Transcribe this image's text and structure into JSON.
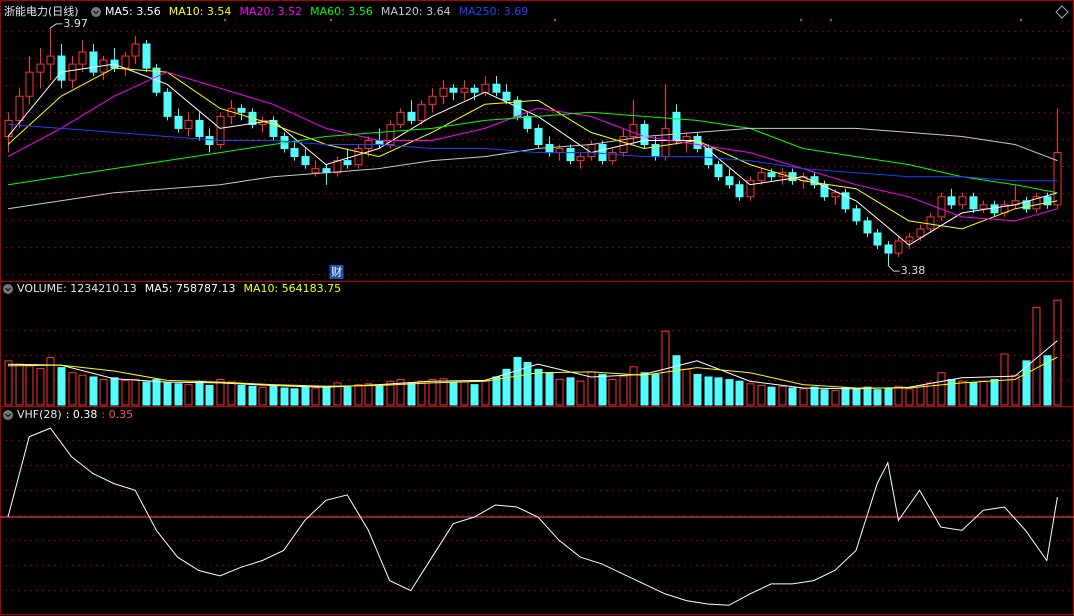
{
  "chart_data": [
    {
      "type": "candlestick",
      "title": "浙能电力(日线)",
      "xlim": [
        -0.75,
        100
      ],
      "ylim": [
        3.343,
        4.027
      ],
      "up_color": "#ff3232",
      "down_color": "#54fcfc",
      "ohlc": [
        [
          3.7,
          3.76,
          3.66,
          3.74
        ],
        [
          3.74,
          3.82,
          3.72,
          3.8
        ],
        [
          3.8,
          3.9,
          3.78,
          3.86
        ],
        [
          3.86,
          3.92,
          3.82,
          3.88
        ],
        [
          3.88,
          3.97,
          3.84,
          3.9
        ],
        [
          3.9,
          3.93,
          3.82,
          3.84
        ],
        [
          3.84,
          3.9,
          3.82,
          3.88
        ],
        [
          3.88,
          3.94,
          3.86,
          3.91
        ],
        [
          3.91,
          3.93,
          3.85,
          3.86
        ],
        [
          3.86,
          3.9,
          3.84,
          3.89
        ],
        [
          3.89,
          3.92,
          3.86,
          3.87
        ],
        [
          3.87,
          3.91,
          3.85,
          3.9
        ],
        [
          3.9,
          3.95,
          3.88,
          3.93
        ],
        [
          3.93,
          3.94,
          3.86,
          3.87
        ],
        [
          3.87,
          3.88,
          3.8,
          3.81
        ],
        [
          3.81,
          3.82,
          3.74,
          3.75
        ],
        [
          3.75,
          3.77,
          3.71,
          3.72
        ],
        [
          3.72,
          3.76,
          3.7,
          3.74
        ],
        [
          3.74,
          3.76,
          3.69,
          3.7
        ],
        [
          3.7,
          3.72,
          3.66,
          3.68
        ],
        [
          3.68,
          3.76,
          3.67,
          3.75
        ],
        [
          3.75,
          3.79,
          3.73,
          3.77
        ],
        [
          3.77,
          3.78,
          3.74,
          3.76
        ],
        [
          3.76,
          3.77,
          3.72,
          3.73
        ],
        [
          3.73,
          3.75,
          3.71,
          3.74
        ],
        [
          3.74,
          3.75,
          3.69,
          3.7
        ],
        [
          3.7,
          3.71,
          3.66,
          3.67
        ],
        [
          3.67,
          3.69,
          3.64,
          3.65
        ],
        [
          3.65,
          3.67,
          3.62,
          3.63
        ],
        [
          3.61,
          3.64,
          3.6,
          3.62
        ],
        [
          3.62,
          3.63,
          3.58,
          3.61
        ],
        [
          3.61,
          3.65,
          3.6,
          3.64
        ],
        [
          3.64,
          3.67,
          3.62,
          3.63
        ],
        [
          3.63,
          3.68,
          3.62,
          3.67
        ],
        [
          3.67,
          3.7,
          3.65,
          3.69
        ],
        [
          3.69,
          3.72,
          3.67,
          3.68
        ],
        [
          3.68,
          3.74,
          3.67,
          3.73
        ],
        [
          3.73,
          3.77,
          3.72,
          3.76
        ],
        [
          3.76,
          3.79,
          3.73,
          3.74
        ],
        [
          3.74,
          3.79,
          3.73,
          3.78
        ],
        [
          3.78,
          3.82,
          3.76,
          3.8
        ],
        [
          3.8,
          3.84,
          3.78,
          3.82
        ],
        [
          3.82,
          3.83,
          3.79,
          3.81
        ],
        [
          3.81,
          3.84,
          3.79,
          3.82
        ],
        [
          3.82,
          3.83,
          3.79,
          3.81
        ],
        [
          3.81,
          3.85,
          3.8,
          3.83
        ],
        [
          3.83,
          3.85,
          3.8,
          3.81
        ],
        [
          3.81,
          3.83,
          3.78,
          3.79
        ],
        [
          3.79,
          3.8,
          3.74,
          3.75
        ],
        [
          3.75,
          3.76,
          3.71,
          3.72
        ],
        [
          3.72,
          3.73,
          3.67,
          3.68
        ],
        [
          3.68,
          3.7,
          3.65,
          3.66
        ],
        [
          3.66,
          3.68,
          3.64,
          3.67
        ],
        [
          3.67,
          3.68,
          3.63,
          3.64
        ],
        [
          3.64,
          3.66,
          3.62,
          3.65
        ],
        [
          3.65,
          3.69,
          3.64,
          3.68
        ],
        [
          3.68,
          3.69,
          3.63,
          3.64
        ],
        [
          3.64,
          3.67,
          3.63,
          3.66
        ],
        [
          3.66,
          3.72,
          3.65,
          3.7
        ],
        [
          3.7,
          3.79,
          3.68,
          3.73
        ],
        [
          3.73,
          3.74,
          3.67,
          3.68
        ],
        [
          3.68,
          3.7,
          3.64,
          3.65
        ],
        [
          3.65,
          3.83,
          3.64,
          3.72
        ],
        [
          3.76,
          3.78,
          3.68,
          3.69
        ],
        [
          3.69,
          3.71,
          3.66,
          3.7
        ],
        [
          3.7,
          3.71,
          3.66,
          3.67
        ],
        [
          3.67,
          3.68,
          3.62,
          3.63
        ],
        [
          3.63,
          3.64,
          3.59,
          3.6
        ],
        [
          3.6,
          3.62,
          3.57,
          3.58
        ],
        [
          3.58,
          3.59,
          3.54,
          3.55
        ],
        [
          3.55,
          3.6,
          3.54,
          3.59
        ],
        [
          3.59,
          3.62,
          3.58,
          3.61
        ],
        [
          3.61,
          3.62,
          3.59,
          3.6
        ],
        [
          3.6,
          3.62,
          3.58,
          3.61
        ],
        [
          3.61,
          3.62,
          3.58,
          3.59
        ],
        [
          3.59,
          3.61,
          3.57,
          3.6
        ],
        [
          3.6,
          3.61,
          3.57,
          3.58
        ],
        [
          3.58,
          3.59,
          3.54,
          3.55
        ],
        [
          3.55,
          3.57,
          3.53,
          3.56
        ],
        [
          3.56,
          3.57,
          3.51,
          3.52
        ],
        [
          3.52,
          3.53,
          3.48,
          3.49
        ],
        [
          3.49,
          3.5,
          3.45,
          3.46
        ],
        [
          3.46,
          3.47,
          3.42,
          3.43
        ],
        [
          3.43,
          3.44,
          3.38,
          3.41
        ],
        [
          3.41,
          3.45,
          3.4,
          3.44
        ],
        [
          3.44,
          3.46,
          3.42,
          3.45
        ],
        [
          3.45,
          3.48,
          3.44,
          3.47
        ],
        [
          3.47,
          3.51,
          3.46,
          3.5
        ],
        [
          3.5,
          3.56,
          3.49,
          3.55
        ],
        [
          3.55,
          3.57,
          3.52,
          3.53
        ],
        [
          3.53,
          3.56,
          3.52,
          3.55
        ],
        [
          3.55,
          3.56,
          3.51,
          3.52
        ],
        [
          3.52,
          3.54,
          3.51,
          3.53
        ],
        [
          3.53,
          3.54,
          3.5,
          3.51
        ],
        [
          3.51,
          3.54,
          3.5,
          3.53
        ],
        [
          3.53,
          3.58,
          3.52,
          3.54
        ],
        [
          3.54,
          3.55,
          3.51,
          3.52
        ],
        [
          3.52,
          3.56,
          3.51,
          3.55
        ],
        [
          3.55,
          3.56,
          3.52,
          3.53
        ],
        [
          3.53,
          3.77,
          3.52,
          3.66
        ]
      ],
      "series": [
        {
          "label": "MA5: 3.56",
          "color": "#ffffff",
          "x": [
            0,
            5,
            10,
            15,
            20,
            25,
            30,
            35,
            40,
            45,
            50,
            55,
            60,
            65,
            70,
            75,
            80,
            85,
            90,
            95,
            99
          ],
          "values": [
            3.7,
            3.86,
            3.88,
            3.83,
            3.72,
            3.74,
            3.63,
            3.67,
            3.75,
            3.81,
            3.75,
            3.66,
            3.69,
            3.69,
            3.58,
            3.6,
            3.54,
            3.43,
            3.51,
            3.53,
            3.56
          ]
        },
        {
          "label": "MA10: 3.54",
          "color": "#ffff00",
          "x": [
            0,
            5,
            10,
            15,
            20,
            25,
            30,
            35,
            40,
            45,
            50,
            55,
            60,
            65,
            70,
            75,
            80,
            85,
            90,
            95,
            99
          ],
          "values": [
            3.68,
            3.8,
            3.87,
            3.86,
            3.77,
            3.73,
            3.68,
            3.65,
            3.71,
            3.78,
            3.79,
            3.71,
            3.67,
            3.69,
            3.63,
            3.59,
            3.57,
            3.49,
            3.47,
            3.52,
            3.54
          ]
        },
        {
          "label": "MA20: 3.52",
          "color": "#ff00ff",
          "x": [
            0,
            5,
            10,
            15,
            20,
            25,
            30,
            35,
            40,
            45,
            50,
            55,
            60,
            65,
            70,
            75,
            80,
            85,
            90,
            95,
            99
          ],
          "values": [
            3.65,
            3.72,
            3.8,
            3.86,
            3.82,
            3.78,
            3.72,
            3.69,
            3.69,
            3.72,
            3.77,
            3.75,
            3.7,
            3.68,
            3.66,
            3.62,
            3.58,
            3.55,
            3.5,
            3.49,
            3.52
          ]
        },
        {
          "label": "MA60: 3.56",
          "color": "#00ff00",
          "x": [
            0,
            5,
            10,
            15,
            20,
            25,
            30,
            35,
            40,
            45,
            50,
            55,
            60,
            65,
            70,
            75,
            80,
            85,
            90,
            95,
            99
          ],
          "values": [
            3.58,
            3.6,
            3.62,
            3.64,
            3.66,
            3.68,
            3.7,
            3.71,
            3.72,
            3.74,
            3.75,
            3.76,
            3.75,
            3.74,
            3.72,
            3.67,
            3.65,
            3.63,
            3.6,
            3.58,
            3.56
          ]
        },
        {
          "label": "MA120: 3.64",
          "color": "#c8c8c8",
          "x": [
            0,
            5,
            10,
            15,
            20,
            25,
            30,
            35,
            40,
            45,
            50,
            55,
            60,
            65,
            70,
            75,
            80,
            85,
            90,
            95,
            99
          ],
          "values": [
            3.52,
            3.54,
            3.56,
            3.57,
            3.58,
            3.6,
            3.61,
            3.62,
            3.64,
            3.65,
            3.67,
            3.68,
            3.7,
            3.71,
            3.72,
            3.72,
            3.72,
            3.71,
            3.7,
            3.68,
            3.64
          ]
        },
        {
          "label": "MA250: 3.69",
          "color": "#2040ff",
          "x": [
            0,
            5,
            10,
            15,
            20,
            25,
            30,
            35,
            40,
            45,
            50,
            55,
            60,
            65,
            70,
            75,
            80,
            85,
            90,
            95,
            99
          ],
          "values": [
            3.73,
            3.72,
            3.71,
            3.7,
            3.69,
            3.69,
            3.68,
            3.68,
            3.67,
            3.67,
            3.66,
            3.66,
            3.65,
            3.65,
            3.64,
            3.62,
            3.61,
            3.6,
            3.6,
            3.59,
            3.59
          ]
        }
      ],
      "annotations": [
        {
          "x": 4,
          "value": 3.97
        },
        {
          "x": 83,
          "value": 3.38
        }
      ],
      "events": [
        {
          "x": 31,
          "label": "财"
        }
      ]
    },
    {
      "type": "volume",
      "label": "VOLUME: 1234210.13",
      "xlim": [
        -0.75,
        100
      ],
      "ylim": [
        0,
        1260000
      ],
      "values": [
        520000,
        480000,
        460000,
        430000,
        560000,
        440000,
        380000,
        350000,
        330000,
        300000,
        320000,
        290000,
        300000,
        270000,
        300000,
        260000,
        250000,
        240000,
        280000,
        230000,
        300000,
        270000,
        230000,
        220000,
        210000,
        220000,
        200000,
        190000,
        210000,
        200000,
        220000,
        260000,
        210000,
        240000,
        250000,
        220000,
        280000,
        300000,
        260000,
        280000,
        300000,
        310000,
        260000,
        270000,
        240000,
        290000,
        330000,
        420000,
        560000,
        500000,
        420000,
        380000,
        300000,
        320000,
        280000,
        390000,
        360000,
        300000,
        340000,
        450000,
        380000,
        360000,
        870000,
        580000,
        420000,
        360000,
        330000,
        320000,
        300000,
        280000,
        250000,
        230000,
        210000,
        220000,
        200000,
        190000,
        210000,
        180000,
        170000,
        200000,
        190000,
        210000,
        180000,
        200000,
        220000,
        190000,
        230000,
        260000,
        380000,
        300000,
        280000,
        260000,
        280000,
        300000,
        600000,
        350000,
        520000,
        1150000,
        580000,
        1234210.13
      ],
      "series": [
        {
          "label": "MA5: 758787.13",
          "color": "#ffffff",
          "x": [
            0,
            5,
            10,
            15,
            20,
            25,
            30,
            35,
            40,
            45,
            50,
            55,
            60,
            65,
            70,
            75,
            80,
            85,
            90,
            95,
            99
          ],
          "values": [
            480000,
            470000,
            310000,
            270000,
            260000,
            230000,
            210000,
            240000,
            280000,
            290000,
            480000,
            330000,
            360000,
            520000,
            280000,
            200000,
            190000,
            210000,
            320000,
            340000,
            758787.13
          ]
        },
        {
          "label": "MA10: 564183.75",
          "color": "#ffff00",
          "x": [
            0,
            5,
            10,
            15,
            20,
            25,
            30,
            35,
            40,
            45,
            50,
            55,
            60,
            65,
            70,
            75,
            80,
            85,
            90,
            95,
            99
          ],
          "values": [
            460000,
            470000,
            400000,
            290000,
            270000,
            240000,
            220000,
            230000,
            260000,
            280000,
            380000,
            390000,
            350000,
            440000,
            380000,
            240000,
            200000,
            200000,
            260000,
            300000,
            564183.75
          ]
        }
      ]
    },
    {
      "type": "line",
      "label": "VHF(28)",
      "xlim": [
        -0.75,
        100
      ],
      "ylim": [
        0.208,
        0.51
      ],
      "series": [
        {
          "label": ": 0.38",
          "color": "#ffffff",
          "x": [
            0,
            2,
            4,
            6,
            8,
            10,
            12,
            14,
            16,
            18,
            20,
            22,
            24,
            26,
            28,
            30,
            32,
            34,
            36,
            38,
            40,
            42,
            44,
            46,
            48,
            50,
            52,
            54,
            56,
            58,
            60,
            62,
            64,
            66,
            68,
            70,
            72,
            74,
            76,
            78,
            80,
            82,
            83,
            84,
            86,
            88,
            90,
            92,
            94,
            96,
            98,
            99
          ],
          "values": [
            0.35,
            0.47,
            0.483,
            0.44,
            0.415,
            0.4,
            0.39,
            0.33,
            0.29,
            0.27,
            0.262,
            0.275,
            0.285,
            0.3,
            0.345,
            0.375,
            0.383,
            0.33,
            0.255,
            0.24,
            0.29,
            0.34,
            0.35,
            0.368,
            0.365,
            0.35,
            0.315,
            0.29,
            0.28,
            0.265,
            0.25,
            0.235,
            0.225,
            0.22,
            0.218,
            0.235,
            0.25,
            0.25,
            0.255,
            0.27,
            0.3,
            0.4,
            0.431,
            0.345,
            0.39,
            0.335,
            0.33,
            0.36,
            0.365,
            0.33,
            0.285,
            0.38
          ]
        }
      ],
      "reference": {
        "label": ": 0.35",
        "value": 0.35,
        "color": "#ff5050"
      }
    }
  ]
}
